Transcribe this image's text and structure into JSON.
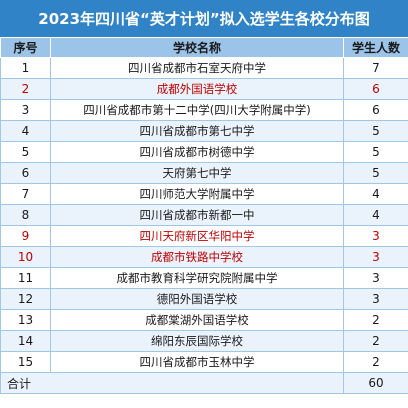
{
  "title": "2023年四川省“英才计划”拟入选学生各校分布图",
  "headers": {
    "no": "序号",
    "school": "学校名称",
    "count": "学生人数"
  },
  "rows": [
    {
      "no": "1",
      "school": "四川省成都市石室天府中学",
      "count": "7",
      "highlight": false
    },
    {
      "no": "2",
      "school": "成都外国语学校",
      "count": "6",
      "highlight": true
    },
    {
      "no": "3",
      "school": "四川省成都市第十二中学(四川大学附属中学)",
      "count": "6",
      "highlight": false
    },
    {
      "no": "4",
      "school": "四川省成都市第七中学",
      "count": "5",
      "highlight": false
    },
    {
      "no": "5",
      "school": "四川省成都市树德中学",
      "count": "5",
      "highlight": false
    },
    {
      "no": "6",
      "school": "天府第七中学",
      "count": "5",
      "highlight": false
    },
    {
      "no": "7",
      "school": "四川师范大学附属中学",
      "count": "4",
      "highlight": false
    },
    {
      "no": "8",
      "school": "四川省成都市新都一中",
      "count": "4",
      "highlight": false
    },
    {
      "no": "9",
      "school": "四川天府新区华阳中学",
      "count": "3",
      "highlight": true
    },
    {
      "no": "10",
      "school": "成都市铁路中学校",
      "count": "3",
      "highlight": true
    },
    {
      "no": "11",
      "school": "成都市教育科学研究院附属中学",
      "count": "3",
      "highlight": false
    },
    {
      "no": "12",
      "school": "德阳外国语学校",
      "count": "3",
      "highlight": false
    },
    {
      "no": "13",
      "school": "成都棠湖外国语学校",
      "count": "2",
      "highlight": false
    },
    {
      "no": "14",
      "school": "绵阳东辰国际学校",
      "count": "2",
      "highlight": false
    },
    {
      "no": "15",
      "school": "四川省成都市玉林中学",
      "count": "2",
      "highlight": false
    }
  ],
  "total": {
    "label": "合计",
    "count": "60"
  },
  "colors": {
    "title_bg": "#2f83c6",
    "header_bg": "#9cc4e9",
    "stripe_bg": "#eaf3fb",
    "highlight_text": "#c00000"
  }
}
